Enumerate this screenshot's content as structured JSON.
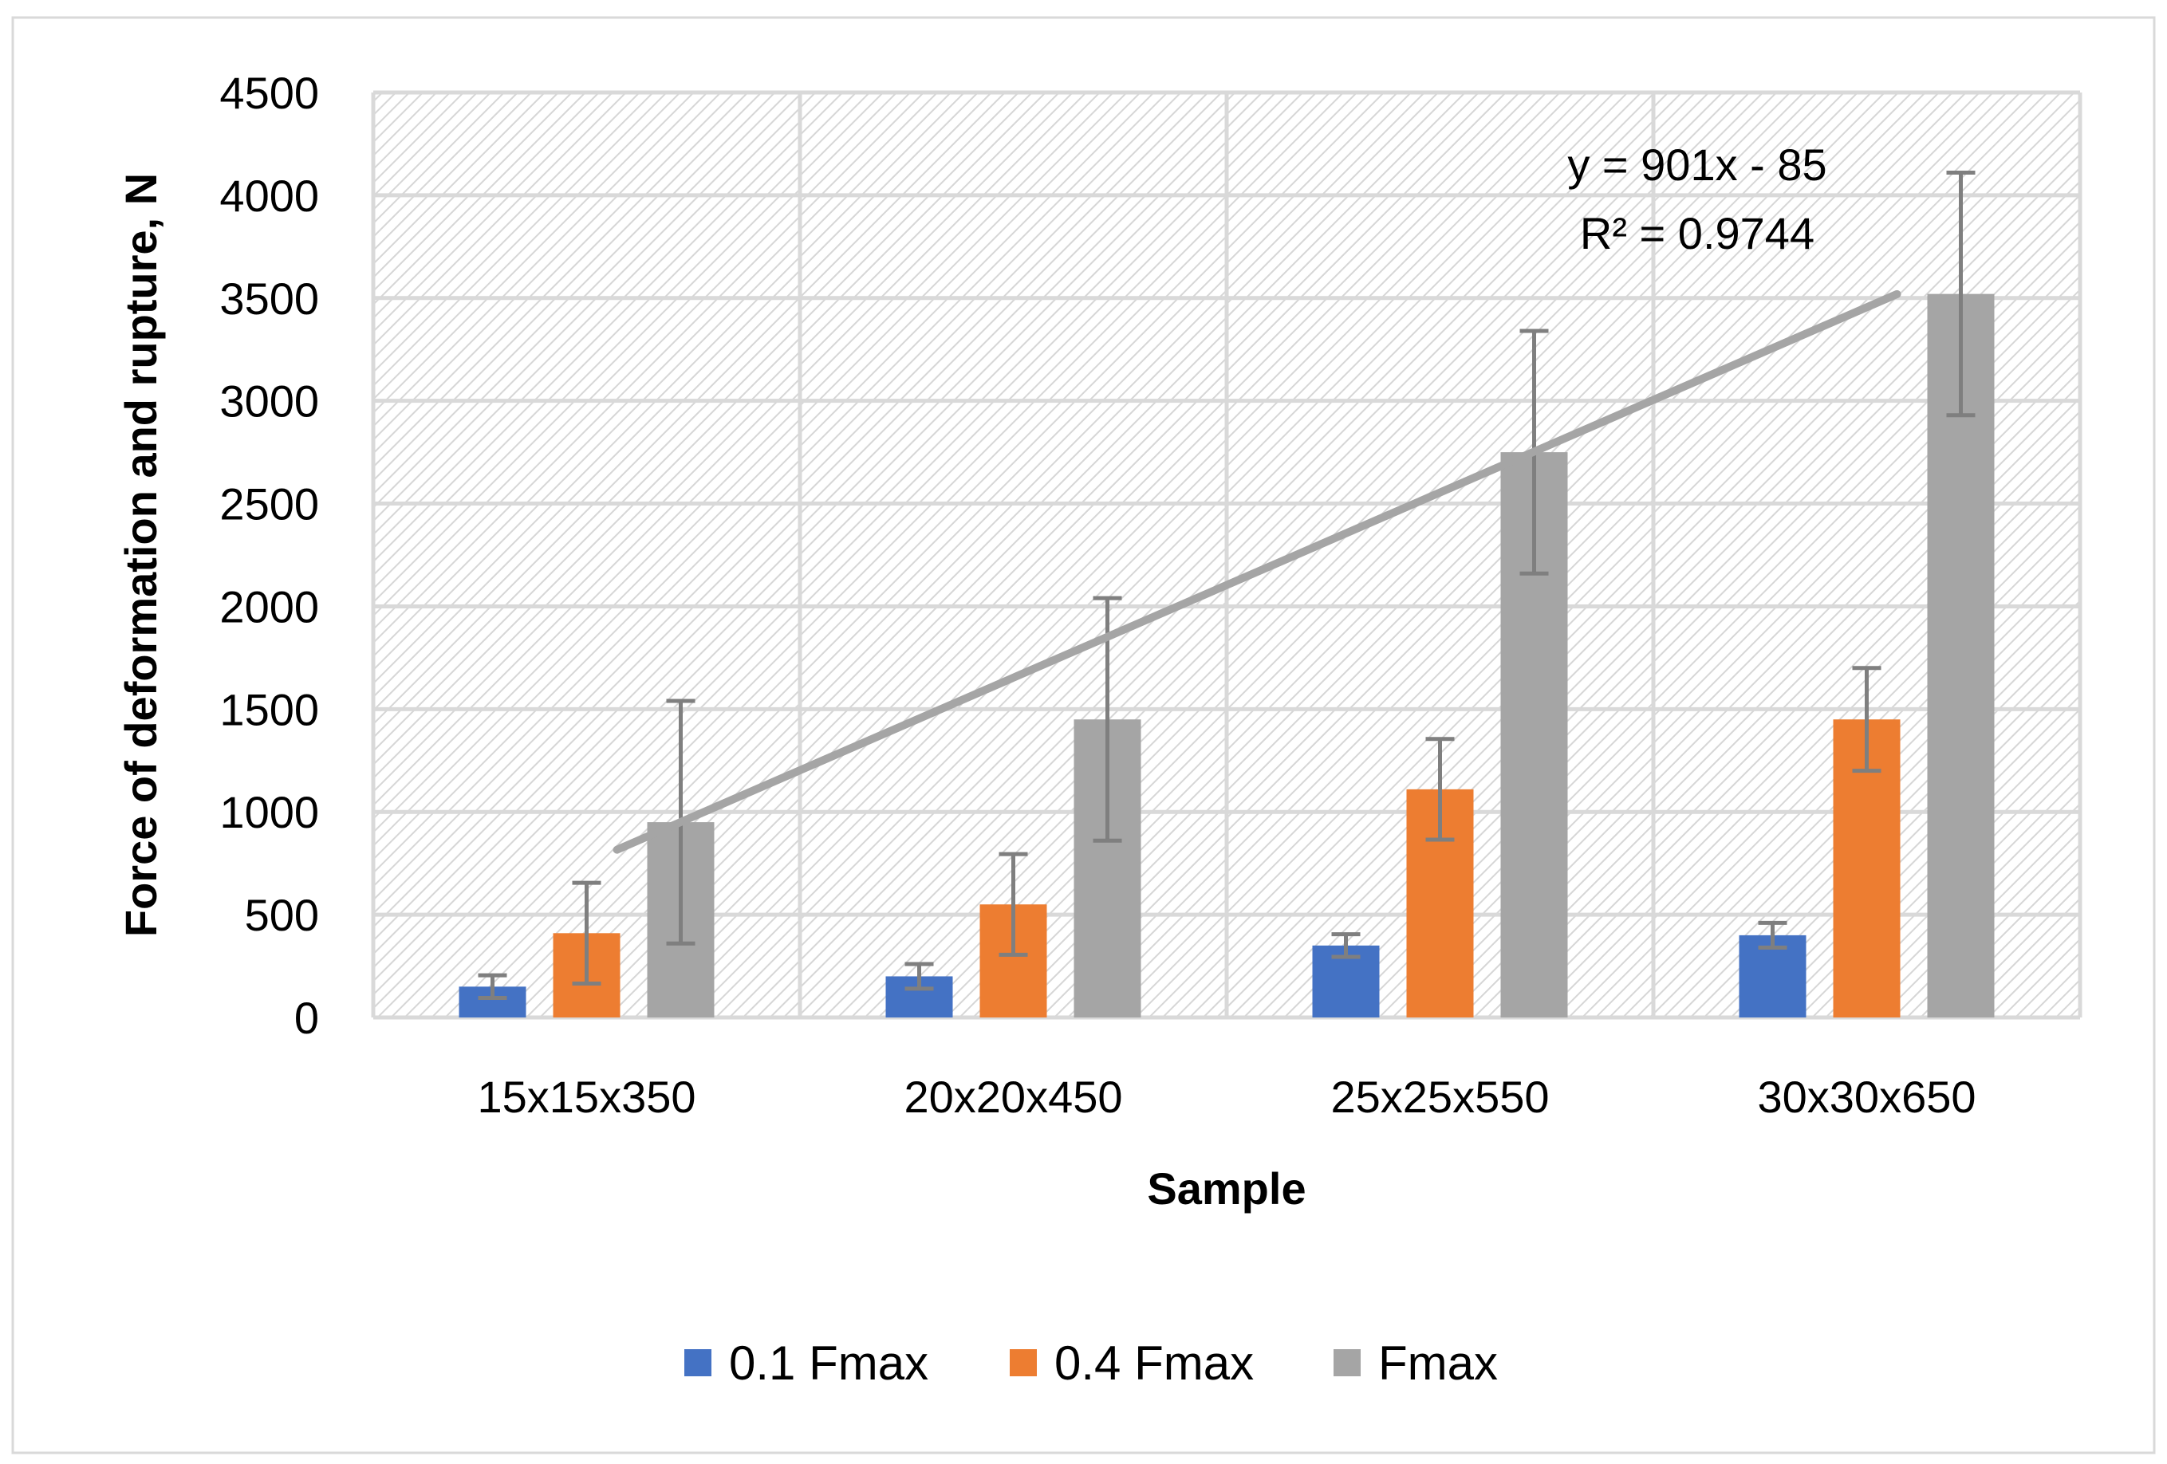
{
  "chart_data": {
    "type": "bar",
    "title": "",
    "xlabel": "Sample",
    "ylabel": "Force of deformation and rupture, N",
    "categories": [
      "15x15x350",
      "20x20x450",
      "25x25x550",
      "30x30x650"
    ],
    "ylim": [
      0,
      4500
    ],
    "yticks": [
      0,
      500,
      1000,
      1500,
      2000,
      2500,
      3000,
      3500,
      4000,
      4500
    ],
    "grid": true,
    "legend_position": "bottom",
    "series": [
      {
        "name": "0.1 Fmax",
        "color": "#4472C4",
        "values": [
          150,
          200,
          350,
          400
        ],
        "errors": [
          55,
          60,
          55,
          60
        ]
      },
      {
        "name": "0.4 Fmax",
        "color": "#ED7D31",
        "values": [
          410,
          550,
          1110,
          1450
        ],
        "errors": [
          245,
          245,
          245,
          250
        ]
      },
      {
        "name": "Fmax",
        "color": "#A5A5A5",
        "values": [
          950,
          1450,
          2750,
          3520
        ],
        "errors": [
          590,
          590,
          590,
          590
        ]
      }
    ],
    "trendline": {
      "series": "Fmax",
      "slope": 901,
      "intercept": -85,
      "color": "#A5A5A5",
      "equation": "y = 901x - 85",
      "r_squared": "R² = 0.9744"
    }
  }
}
